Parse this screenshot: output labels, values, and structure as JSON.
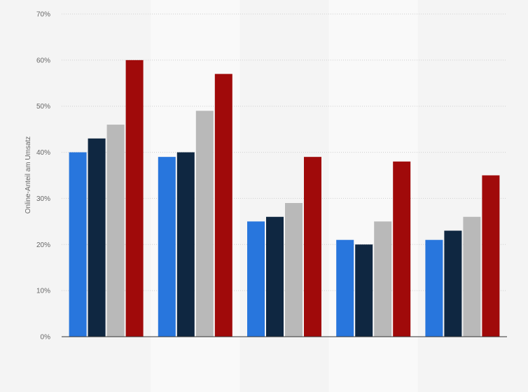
{
  "chart_data": {
    "type": "bar",
    "title": "",
    "xlabel": "",
    "ylabel": "Online-Anteil am Umsatz",
    "ylim": [
      0,
      70
    ],
    "y_ticks": [
      "0%",
      "10%",
      "20%",
      "30%",
      "40%",
      "50%",
      "60%",
      "70%"
    ],
    "y_tick_values": [
      0,
      10,
      20,
      30,
      40,
      50,
      60,
      70
    ],
    "grid": true,
    "categories": [
      "",
      "",
      "",
      "",
      ""
    ],
    "series": [
      {
        "color": "#2876dd",
        "values": [
          40,
          39,
          25,
          21,
          21
        ]
      },
      {
        "color": "#0f2741",
        "values": [
          43,
          40,
          26,
          20,
          23
        ]
      },
      {
        "color": "#b9b9b9",
        "values": [
          46,
          49,
          29,
          25,
          26
        ]
      },
      {
        "color": "#a00a0a",
        "values": [
          60,
          57,
          39,
          38,
          35
        ]
      }
    ]
  }
}
